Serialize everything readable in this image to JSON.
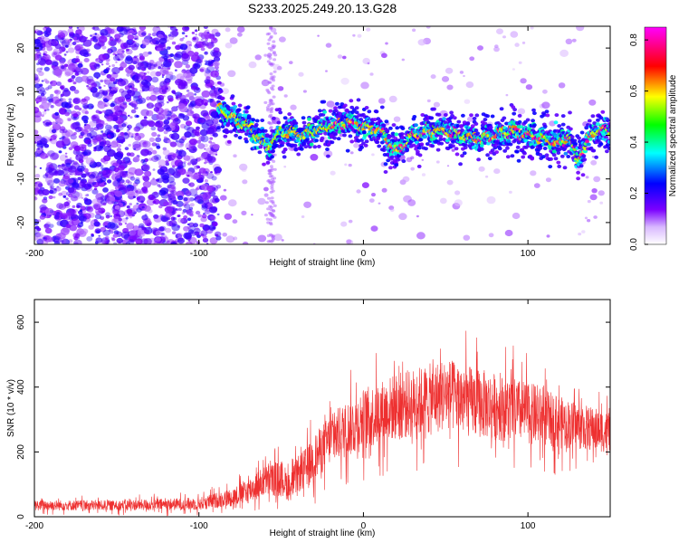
{
  "chart_data": [
    {
      "type": "heatmap",
      "title": "S233.2025.249.20.13.G28",
      "xlabel": "Height of straight line (km)",
      "ylabel": "Frequency (Hz)",
      "xlim": [
        -200,
        150
      ],
      "ylim": [
        -25,
        25
      ],
      "xticks": [
        -200,
        -100,
        0,
        100
      ],
      "yticks": [
        -20,
        -10,
        0,
        10,
        20
      ],
      "colorbar": {
        "label": "Normalized spectral amplitude",
        "range": [
          0,
          0.85
        ],
        "ticks": [
          "0.0",
          "0.2",
          "0.4",
          "0.6",
          "0.8"
        ],
        "colormap": [
          "#ffffff",
          "#7b00ff",
          "#0000ff",
          "#00ffff",
          "#00ff00",
          "#ffff00",
          "#ff0000",
          "#ff00ff"
        ]
      },
      "ridge": {
        "x": [
          -88,
          -80,
          -70,
          -62,
          -58,
          -50,
          -40,
          -30,
          -20,
          -10,
          0,
          10,
          20,
          30,
          40,
          50,
          60,
          70,
          80,
          90,
          100,
          110,
          118,
          125,
          130,
          140,
          150
        ],
        "y": [
          6,
          4,
          2,
          -1,
          -3,
          1,
          0,
          1,
          2,
          3,
          2,
          1,
          -4,
          0,
          1,
          1,
          0,
          -1,
          0,
          1,
          0,
          -1,
          -2,
          0,
          -6,
          1,
          1
        ]
      }
    },
    {
      "type": "line",
      "xlabel": "Height of straight line (km)",
      "ylabel": "SNR (10 * v/v)",
      "xlim": [
        -200,
        150
      ],
      "ylim": [
        0,
        670
      ],
      "xticks": [
        -200,
        -100,
        0,
        100
      ],
      "yticks": [
        0,
        200,
        400,
        600
      ],
      "color": "#ee3030",
      "envelope": {
        "x": [
          -200,
          -150,
          -100,
          -80,
          -70,
          -60,
          -50,
          -45,
          -40,
          -35,
          -30,
          -20,
          -10,
          0,
          20,
          40,
          50,
          60,
          80,
          100,
          120,
          130,
          150
        ],
        "mean": [
          35,
          35,
          40,
          60,
          80,
          110,
          120,
          90,
          130,
          150,
          180,
          240,
          270,
          300,
          340,
          360,
          380,
          360,
          340,
          320,
          290,
          280,
          260
        ],
        "spread": [
          20,
          20,
          25,
          35,
          50,
          60,
          70,
          55,
          70,
          80,
          90,
          100,
          110,
          120,
          130,
          140,
          140,
          140,
          130,
          120,
          100,
          90,
          80
        ]
      }
    }
  ]
}
